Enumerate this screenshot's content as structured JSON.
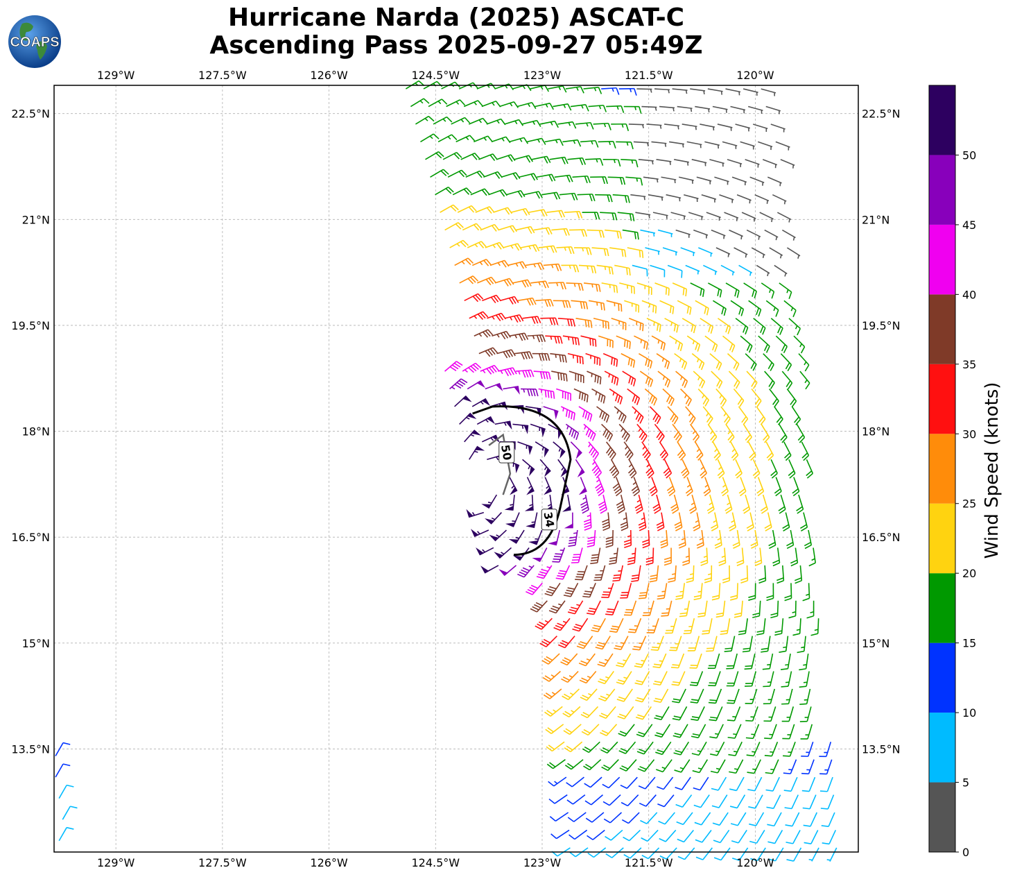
{
  "title": {
    "line1": "Hurricane Narda (2025) ASCAT-C",
    "line2": "Ascending Pass 2025-09-27 05:49Z"
  },
  "logo": {
    "text": "COAPS",
    "icon": "globe-logo-icon"
  },
  "map": {
    "lon_ticks": [
      "129°W",
      "127.5°W",
      "126°W",
      "124.5°W",
      "123°W",
      "121.5°W",
      "120°W"
    ],
    "lat_ticks": [
      "22.5°N",
      "21°N",
      "19.5°N",
      "18°N",
      "16.5°N",
      "15°N",
      "13.5°N"
    ],
    "lon_values": [
      -129,
      -127.5,
      -126,
      -124.5,
      -123,
      -121.5,
      -120
    ],
    "lat_values": [
      22.5,
      21,
      19.5,
      18,
      16.5,
      15,
      13.5
    ],
    "extent": {
      "lon_min": -129.87,
      "lon_max": -118.55,
      "lat_min": 12.04,
      "lat_max": 22.9
    },
    "gridlines": true,
    "storm_center": {
      "lon": -123.8,
      "lat": 17.3
    },
    "contours": [
      {
        "label": "34",
        "speed_kt": 34
      },
      {
        "label": "50",
        "speed_kt": 50
      }
    ]
  },
  "colorbar": {
    "label": "Wind Speed (knots)",
    "ticks": [
      "0",
      "5",
      "10",
      "15",
      "20",
      "25",
      "30",
      "35",
      "40",
      "45",
      "50"
    ],
    "bins": [
      {
        "min": 0,
        "max": 5,
        "color": "#555555"
      },
      {
        "min": 5,
        "max": 10,
        "color": "#00bbff"
      },
      {
        "min": 10,
        "max": 15,
        "color": "#0033ff"
      },
      {
        "min": 15,
        "max": 20,
        "color": "#009900"
      },
      {
        "min": 20,
        "max": 25,
        "color": "#ffd310"
      },
      {
        "min": 25,
        "max": 30,
        "color": "#ff8c0a"
      },
      {
        "min": 30,
        "max": 35,
        "color": "#ff1010"
      },
      {
        "min": 35,
        "max": 40,
        "color": "#7f3a28"
      },
      {
        "min": 40,
        "max": 45,
        "color": "#f000f0"
      },
      {
        "min": 45,
        "max": 50,
        "color": "#8800bb"
      },
      {
        "min": 50,
        "max": 55,
        "color": "#2d0060"
      }
    ]
  }
}
